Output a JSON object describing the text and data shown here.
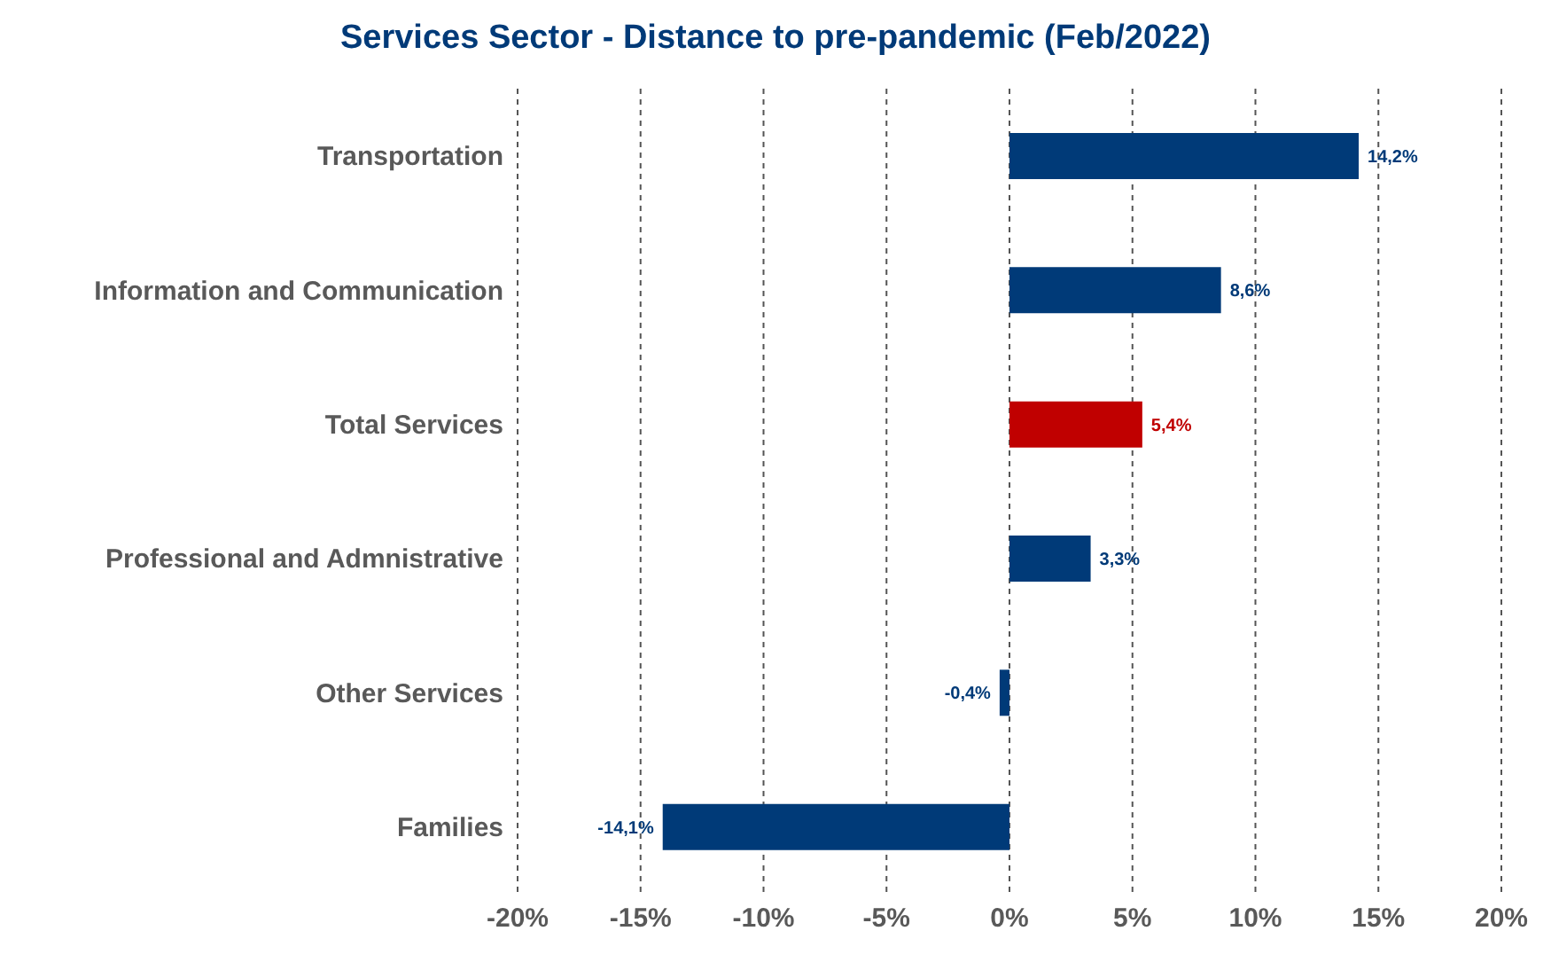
{
  "chart_data": {
    "type": "bar",
    "orientation": "horizontal",
    "title": "Services Sector - Distance to pre-pandemic (Feb/2022)",
    "categories": [
      "Transportation",
      "Information and Communication",
      "Total Services",
      "Professional and Admnistrative",
      "Other Services",
      "Families"
    ],
    "values": [
      14.2,
      8.6,
      5.4,
      3.3,
      -0.4,
      -14.1
    ],
    "colors": [
      "#003a78",
      "#003a78",
      "#c00000",
      "#003a78",
      "#003a78",
      "#003a78"
    ],
    "value_labels": [
      "14,2%",
      "8,6%",
      "5,4%",
      "3,3%",
      "-0,4%",
      "-14,1%"
    ],
    "xlim": [
      -20,
      20
    ],
    "xticks": [
      {
        "value": -20,
        "label": "-20%"
      },
      {
        "value": -15,
        "label": "-15%"
      },
      {
        "value": -10,
        "label": "-10%"
      },
      {
        "value": -5,
        "label": "-5%"
      },
      {
        "value": 0,
        "label": "0%"
      },
      {
        "value": 5,
        "label": "5%"
      },
      {
        "value": 10,
        "label": "10%"
      },
      {
        "value": 15,
        "label": "15%"
      },
      {
        "value": 20,
        "label": "20%"
      }
    ],
    "grid": "x",
    "legend": false
  }
}
